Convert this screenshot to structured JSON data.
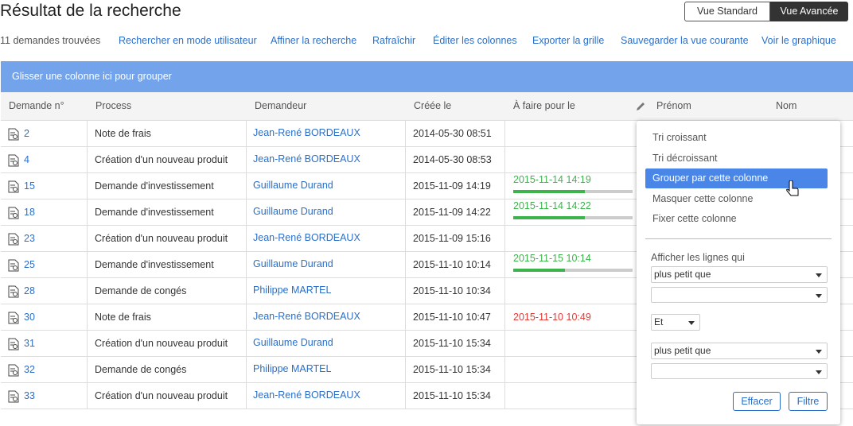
{
  "header": {
    "title": "Résultat de la recherche",
    "views": [
      "Vue Standard",
      "Vue Avancée"
    ]
  },
  "toolbar": {
    "count": "11 demandes trouvées",
    "links": [
      "Rechercher en mode utilisateur",
      "Affiner la recherche",
      "Rafraîchir",
      "Éditer les colonnes",
      "Exporter la grille",
      "Sauvegarder la vue courante",
      "Voir le graphique"
    ]
  },
  "group_bar": "Glisser une colonne ici pour grouper",
  "table": {
    "columns": [
      "Demande n°",
      "Process",
      "Demandeur",
      "Créée le",
      "À faire pour le",
      "Prénom",
      "Nom"
    ],
    "rows": [
      {
        "id": "2",
        "process": "Note de frais",
        "requester": "Jean-René BORDEAUX",
        "created": "2014-05-30 08:51"
      },
      {
        "id": "4",
        "process": "Création d'un nouveau produit",
        "requester": "Jean-René BORDEAUX",
        "created": "2014-05-30 08:53"
      },
      {
        "id": "15",
        "process": "Demande d'investissement",
        "requester": "Guillaume Durand",
        "created": "2015-11-09 14:19",
        "due": "2015-11-14 14:19",
        "due_color": "#3cb44b",
        "progress": 60
      },
      {
        "id": "18",
        "process": "Demande d'investissement",
        "requester": "Guillaume Durand",
        "created": "2015-11-09 14:22",
        "due": "2015-11-14 14:22",
        "due_color": "#3cb44b",
        "progress": 60
      },
      {
        "id": "23",
        "process": "Création d'un nouveau produit",
        "requester": "Jean-René BORDEAUX",
        "created": "2015-11-09 15:16"
      },
      {
        "id": "25",
        "process": "Demande d'investissement",
        "requester": "Guillaume Durand",
        "created": "2015-11-10 10:14",
        "due": "2015-11-15 10:14",
        "due_color": "#3cb44b",
        "progress": 43
      },
      {
        "id": "28",
        "process": "Demande de congés",
        "requester": "Philippe MARTEL",
        "created": "2015-11-10 10:34"
      },
      {
        "id": "30",
        "process": "Note de frais",
        "requester": "Jean-René BORDEAUX",
        "created": "2015-11-10 10:47",
        "due": "2015-11-10 10:49",
        "due_color": "#e53935"
      },
      {
        "id": "31",
        "process": "Création d'un nouveau produit",
        "requester": "Guillaume Durand",
        "created": "2015-11-10 15:34"
      },
      {
        "id": "32",
        "process": "Demande de congés",
        "requester": "Philippe MARTEL",
        "created": "2015-11-10 15:34"
      },
      {
        "id": "33",
        "process": "Création d'un nouveau produit",
        "requester": "Jean-René BORDEAUX",
        "created": "2015-11-10 15:34"
      }
    ]
  },
  "menu": {
    "items": [
      "Tri croissant",
      "Tri décroissant",
      "Grouper par cette colonne",
      "Masquer cette colonne",
      "Fixer cette colonne"
    ],
    "filter_label": "Afficher les lignes qui",
    "condition1": "plus petit que",
    "joiner": "Et",
    "condition2": "plus petit que",
    "buttons": [
      "Effacer",
      "Filtre"
    ]
  }
}
